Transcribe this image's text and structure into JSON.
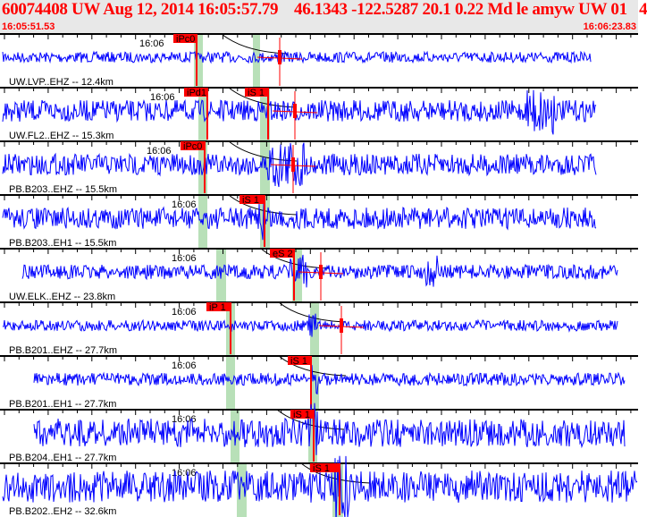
{
  "header": {
    "title": "60074408 UW Aug 12, 2014 16:05:57.79    46.1343 -122.5287 20.1 0.22 Md le amyw UW 01   4",
    "start_time": "16:05:51.53",
    "end_time": "16:06:23.83"
  },
  "colors": {
    "trace": "#0000ff",
    "pick": "#ff0000",
    "window": "#b8e0b8",
    "header_text": "#ff0000"
  },
  "panels": [
    {
      "station": "UW.LVP..EHZ -- 12.4km",
      "time": "16:06",
      "picks": [
        "iPc0"
      ]
    },
    {
      "station": "UW.FL2..EHZ -- 15.3km",
      "time": "16:06",
      "picks": [
        "iPd1",
        "iS 1"
      ]
    },
    {
      "station": "PB.B203..EHZ -- 15.5km",
      "time": "16:06",
      "picks": [
        "iPc0"
      ]
    },
    {
      "station": "PB.B203..EH1 -- 15.5km",
      "time": "16:06",
      "picks": [
        "iS 1"
      ]
    },
    {
      "station": "UW.ELK..EHZ -- 23.8km",
      "time": "16:06",
      "picks": [
        "eS 2"
      ]
    },
    {
      "station": "PB.B201..EHZ -- 27.7km",
      "time": "16:06",
      "picks": [
        "iP 1"
      ]
    },
    {
      "station": "PB.B201..EH1 -- 27.7km",
      "time": "16:06",
      "picks": [
        "iS 1"
      ]
    },
    {
      "station": "PB.B204..EH1 -- 27.7km",
      "time": "16:06",
      "picks": [
        "iS 1"
      ]
    },
    {
      "station": "PB.B202..EH2 -- 32.6km",
      "time": "16:06",
      "picks": [
        "iS 1"
      ]
    }
  ]
}
